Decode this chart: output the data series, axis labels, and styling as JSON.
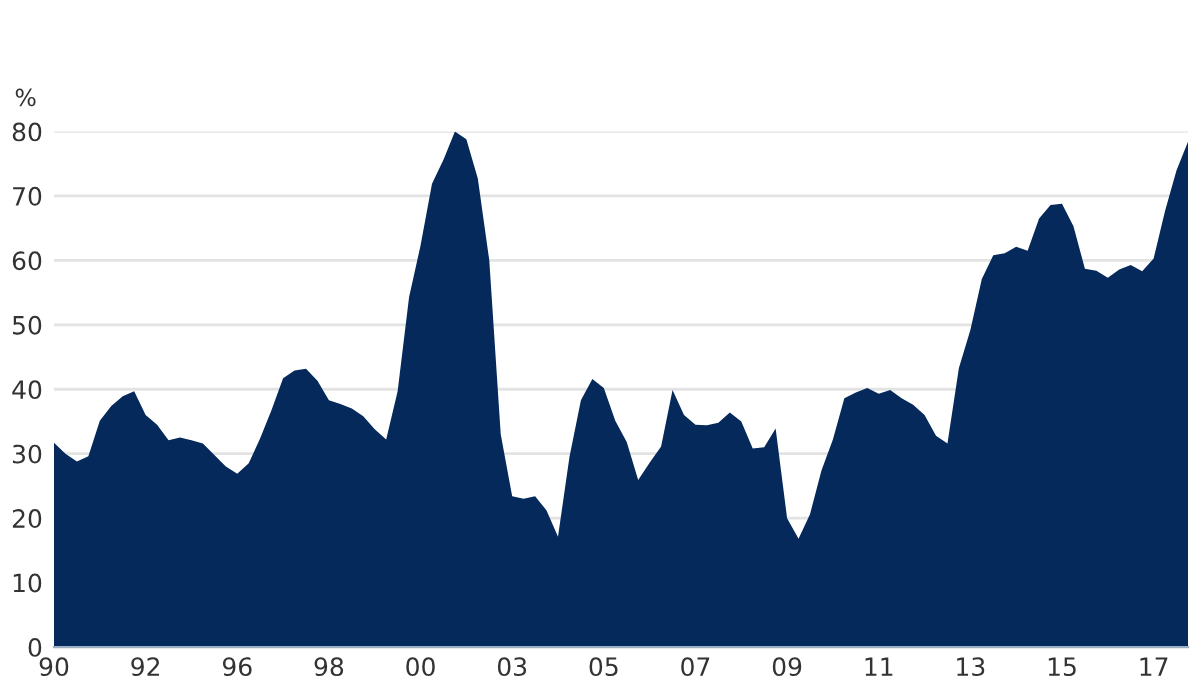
{
  "chart_data": {
    "type": "area",
    "ylabel": "%",
    "color": "#04295a",
    "categories": [
      "90",
      null,
      null,
      null,
      null,
      null,
      null,
      null,
      "92",
      null,
      null,
      null,
      null,
      null,
      null,
      null,
      "96",
      null,
      null,
      null,
      null,
      null,
      null,
      null,
      "98",
      null,
      null,
      null,
      null,
      null,
      null,
      null,
      "00",
      null,
      null,
      null,
      null,
      null,
      null,
      null,
      "03",
      null,
      null,
      null,
      null,
      null,
      null,
      null,
      "05",
      null,
      null,
      null,
      null,
      null,
      null,
      null,
      "07",
      null,
      null,
      null,
      null,
      null,
      null,
      null,
      "09",
      null,
      null,
      null,
      null,
      null,
      null,
      null,
      "11",
      null,
      null,
      null,
      null,
      null,
      null,
      null,
      "13",
      null,
      null,
      null,
      null,
      null,
      null,
      null,
      "15",
      null,
      null,
      null,
      null,
      null,
      null,
      null,
      "17",
      null,
      null,
      null
    ],
    "values": [
      31.7,
      30.0,
      28.8,
      29.6,
      35.1,
      37.4,
      38.9,
      39.7,
      36.0,
      34.5,
      32.1,
      32.5,
      32.1,
      31.6,
      29.8,
      28.0,
      26.9,
      28.5,
      32.4,
      36.8,
      41.7,
      42.9,
      43.2,
      41.3,
      38.3,
      37.7,
      37.0,
      35.8,
      33.8,
      32.2,
      39.7,
      54.3,
      62.3,
      71.9,
      75.6,
      80.0,
      78.8,
      72.7,
      60.0,
      33.0,
      23.4,
      23.0,
      23.4,
      21.2,
      17.1,
      29.5,
      38.3,
      41.6,
      40.2,
      35.1,
      31.8,
      25.9,
      28.6,
      31.1,
      39.9,
      36.0,
      34.5,
      34.4,
      34.8,
      36.4,
      35.0,
      30.8,
      31.0,
      33.9,
      20.0,
      16.8,
      20.6,
      27.4,
      32.2,
      38.6,
      39.5,
      40.2,
      39.3,
      39.9,
      38.6,
      37.6,
      36.0,
      32.8,
      31.6,
      43.3,
      49.2,
      57.1,
      60.8,
      61.1,
      62.1,
      61.5,
      66.5,
      68.6,
      68.8,
      65.3,
      58.7,
      58.4,
      57.3,
      58.6,
      59.3,
      58.3,
      60.3,
      67.7,
      74.0,
      78.4
    ],
    "ylim": [
      0,
      80
    ],
    "yticks": [
      0,
      10,
      20,
      30,
      40,
      50,
      60,
      70,
      80
    ],
    "grid": "y"
  }
}
